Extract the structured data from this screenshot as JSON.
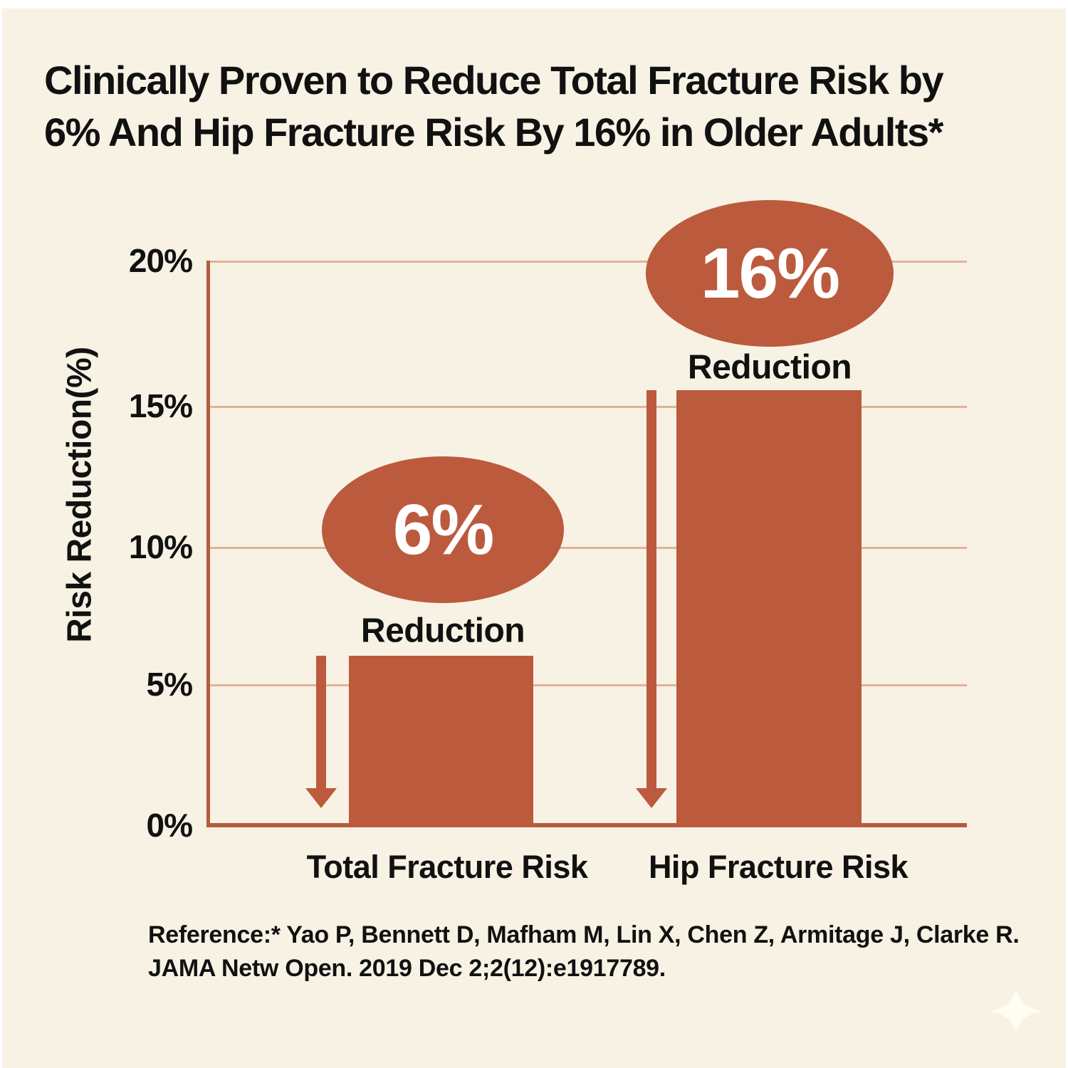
{
  "title": {
    "line1": "Clinically Proven to Reduce Total Fracture Risk by",
    "line2": "6% And Hip Fracture Risk By 16% in Older Adults*"
  },
  "chart_data": {
    "type": "bar",
    "categories": [
      "Total Fracture Risk",
      "Hip Fracture Risk"
    ],
    "values": [
      6,
      16
    ],
    "bar_drawn_percent": [
      6,
      15.4
    ],
    "badges": [
      {
        "value_label": "6%",
        "caption": "Reduction"
      },
      {
        "value_label": "16%",
        "caption": "Reduction"
      }
    ],
    "ylabel": "Risk Reduction(%)",
    "y_ticks": [
      "20%",
      "15%",
      "10%",
      "5%",
      "0%"
    ],
    "ylim": [
      0,
      20
    ],
    "grid": true,
    "legend": false,
    "annotations": [
      "down-arrow beside each bar"
    ]
  },
  "reference": {
    "line1": "Reference:* Yao P, Bennett D, Mafham M, Lin X, Chen Z, Armitage J, Clarke R.",
    "line2": "JAMA Netw Open. 2019 Dec 2;2(12):e1917789."
  },
  "colors": {
    "background": "#F7F2E4",
    "frame": "#FFFFFF",
    "accent": "#BC5A3E",
    "axis": "#B75B3D",
    "gridline": "#E2B29C",
    "text": "#111111",
    "badge_text": "#FFFFFF",
    "sparkle": "#FFFDF2"
  }
}
